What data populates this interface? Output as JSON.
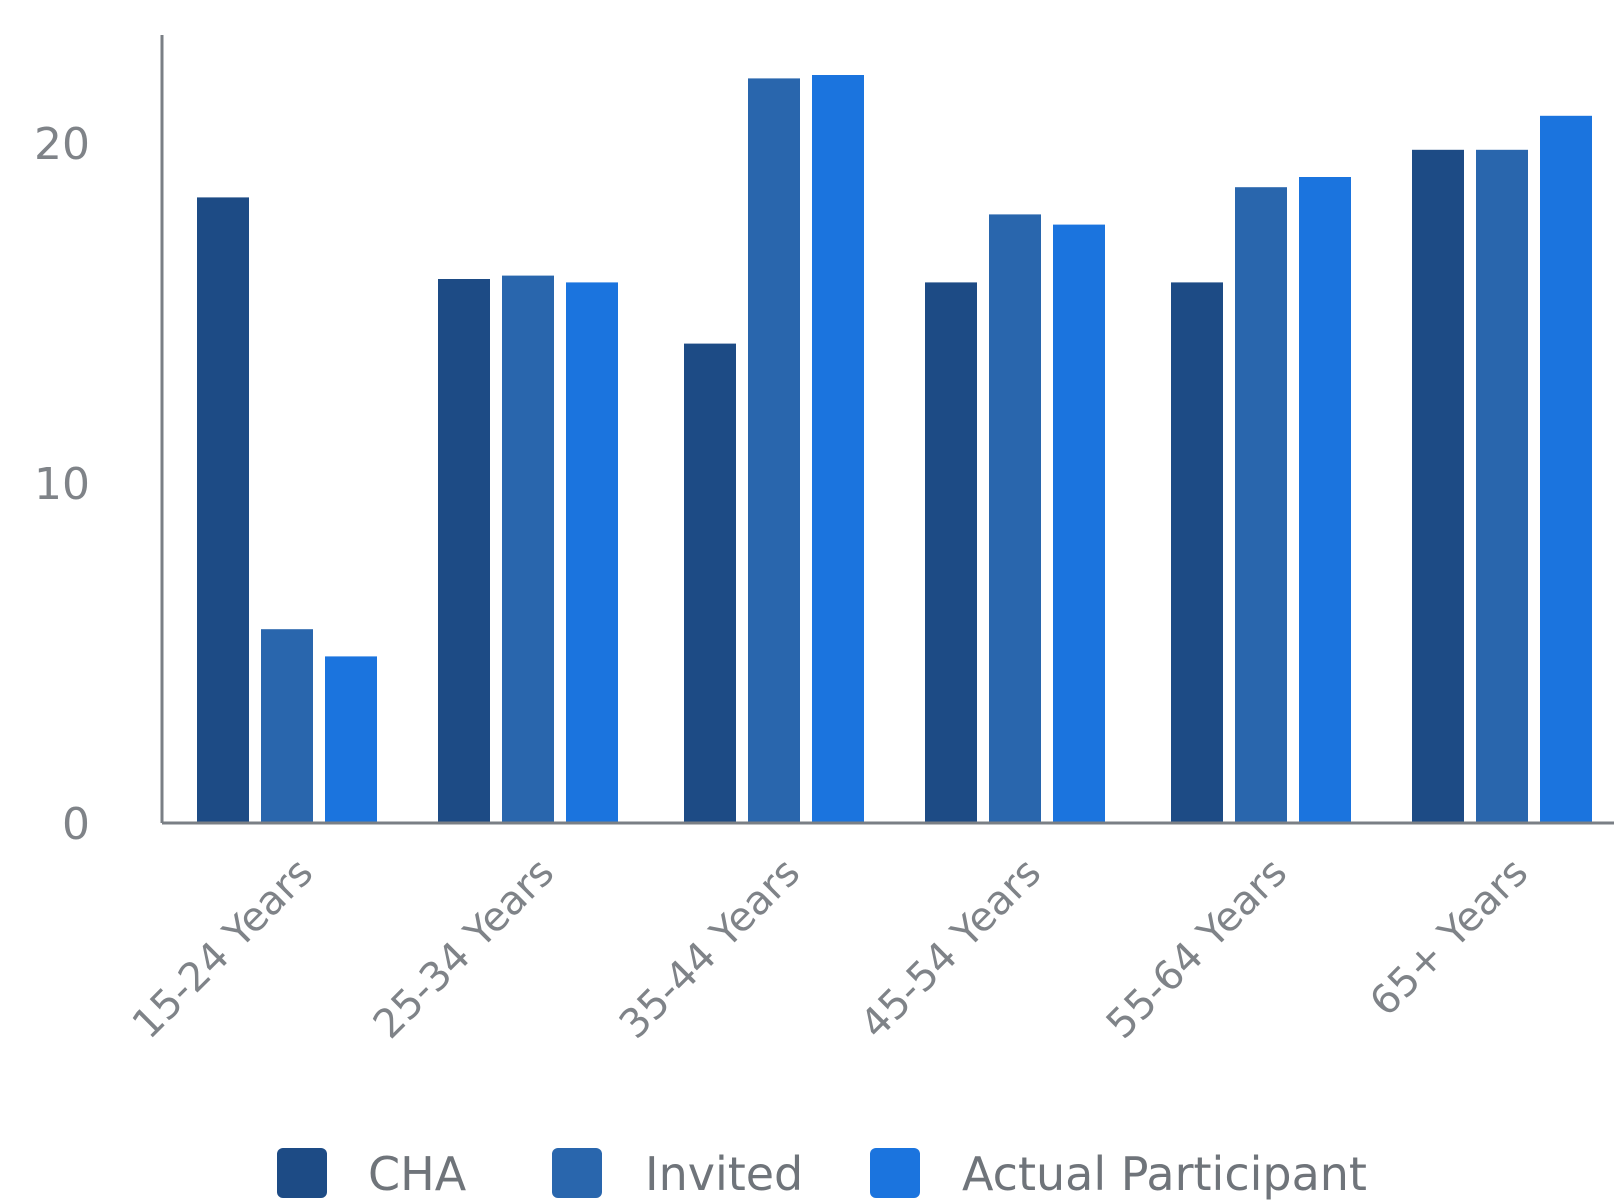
{
  "chart_data": {
    "type": "bar",
    "categories": [
      "15-24 Years",
      "25-34 Years",
      "35-44 Years",
      "45-54 Years",
      "55-64 Years",
      "65+ Years"
    ],
    "series": [
      {
        "name": "CHA",
        "color": "#1d4b85",
        "values": [
          18.4,
          16.0,
          14.1,
          15.9,
          15.9,
          19.8
        ]
      },
      {
        "name": "Invited",
        "color": "#2966ad",
        "values": [
          5.7,
          16.1,
          21.9,
          17.9,
          18.7,
          19.8
        ]
      },
      {
        "name": "Actual Participant",
        "color": "#1b74de",
        "values": [
          4.9,
          15.9,
          22.0,
          17.6,
          19.0,
          20.8
        ]
      }
    ],
    "yticks": [
      "0",
      "10",
      "20"
    ],
    "ylim": [
      0,
      24
    ],
    "grid": false,
    "legend_position": "bottom"
  }
}
